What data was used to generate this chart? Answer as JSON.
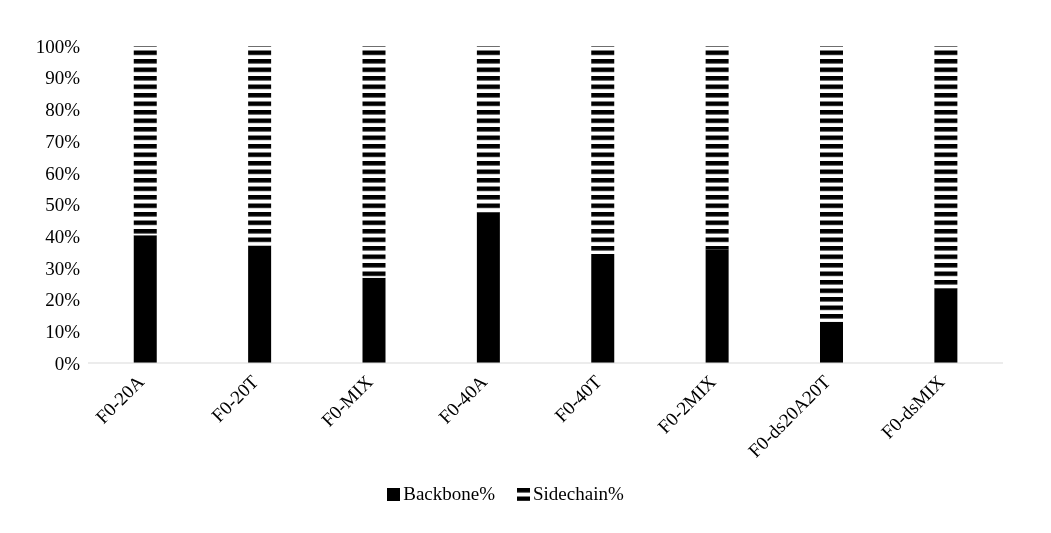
{
  "chart_data": {
    "type": "bar",
    "stacked": true,
    "categories": [
      "F0-20A",
      "F0-20T",
      "F0-MIX",
      "F0-40A",
      "F0-40T",
      "F0-2MIX",
      "F0-ds20A20T",
      "F0-dsMIX"
    ],
    "series": [
      {
        "name": "Backbone%",
        "color": "#000000",
        "values": [
          40.3,
          37.1,
          26.9,
          47.5,
          34.4,
          35.7,
          13,
          23.6
        ]
      },
      {
        "name": "Sidechain%",
        "color": "#000000",
        "values": [
          59.7,
          62.9,
          73.1,
          52.5,
          65.6,
          64.3,
          87,
          76.4
        ]
      }
    ],
    "ylim": [
      0,
      100
    ],
    "yticks": [
      {
        "value": 0,
        "label": "0%"
      },
      {
        "value": 10,
        "label": "10%"
      },
      {
        "value": 20,
        "label": "20%"
      },
      {
        "value": 30,
        "label": "30%"
      },
      {
        "value": 40,
        "label": "40%"
      },
      {
        "value": 50,
        "label": "50%"
      },
      {
        "value": 60,
        "label": "60%"
      },
      {
        "value": 70,
        "label": "70%"
      },
      {
        "value": 80,
        "label": "80%"
      },
      {
        "value": 90,
        "label": "90%"
      },
      {
        "value": 100,
        "label": "100%"
      }
    ],
    "grid": false,
    "legend": "bottom"
  }
}
